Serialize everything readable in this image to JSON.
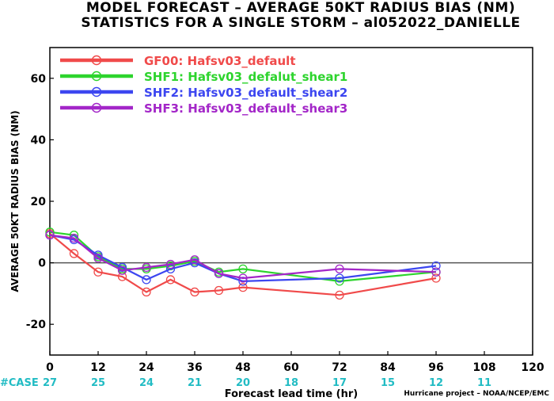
{
  "title": {
    "line1": "MODEL FORECAST – AVERAGE 50KT RADIUS BIAS (NM)",
    "line2": "STATISTICS FOR A SINGLE STORM – al052022_DANIELLE"
  },
  "credit": "Hurricane project – NOAA/NCEP/EMC",
  "cases_label": "#CASE",
  "colors": {
    "case_text": "#22bcc4",
    "zero_line": "#555555"
  },
  "chart_data": {
    "type": "line",
    "title": "MODEL FORECAST – AVERAGE 50KT RADIUS BIAS (NM)",
    "subtitle": "STATISTICS FOR A SINGLE STORM – al052022_DANIELLE",
    "xlabel": "Forecast lead time (hr)",
    "ylabel": "AVERAGE 50KT RADIUS BIAS (NM)",
    "xlim": [
      0,
      120
    ],
    "ylim": [
      -30,
      70
    ],
    "xticks": [
      0,
      12,
      24,
      36,
      48,
      60,
      72,
      84,
      96,
      108,
      120
    ],
    "yticks": [
      -20,
      0,
      20,
      40,
      60
    ],
    "ytick_labels": [
      "-20",
      "0",
      "20",
      "40",
      "60"
    ],
    "grid": false,
    "legend_position": "top-left",
    "cases": {
      "x": [
        0,
        12,
        24,
        36,
        48,
        60,
        72,
        84,
        96,
        108
      ],
      "values": [
        27,
        25,
        24,
        21,
        20,
        18,
        17,
        15,
        12,
        11
      ]
    },
    "series": [
      {
        "name": "GF00: Hafsv03_default",
        "color": "#f04a4a",
        "x": [
          0,
          6,
          12,
          18,
          24,
          30,
          36,
          42,
          48,
          72,
          96
        ],
        "y": [
          9.5,
          3,
          -3,
          -4.5,
          -9.5,
          -5.5,
          -9.5,
          -9,
          -8,
          -10.5,
          -5
        ]
      },
      {
        "name": "SHF1: Hafsv03_defalut_shear1",
        "color": "#2dd42d",
        "x": [
          0,
          6,
          12,
          18,
          24,
          30,
          36,
          42,
          48,
          72,
          96
        ],
        "y": [
          10,
          9,
          2,
          -2,
          -2,
          -1,
          0.5,
          -3,
          -2,
          -6,
          -3
        ]
      },
      {
        "name": "SHF2: Hafsv03_default_shear2",
        "color": "#3c46f0",
        "x": [
          0,
          6,
          12,
          18,
          24,
          30,
          36,
          42,
          48,
          72,
          96
        ],
        "y": [
          9,
          7.5,
          2.5,
          -1.5,
          -5.5,
          -2,
          0,
          -3.5,
          -6,
          -5,
          -1
        ]
      },
      {
        "name": "SHF3: Hafsv03_default_shear3",
        "color": "#a326c8",
        "x": [
          0,
          6,
          12,
          18,
          24,
          30,
          36,
          42,
          48,
          72,
          96
        ],
        "y": [
          9,
          8,
          1.5,
          -2.5,
          -1.5,
          -0.5,
          1,
          -3.5,
          -5,
          -2,
          -3
        ]
      }
    ]
  }
}
